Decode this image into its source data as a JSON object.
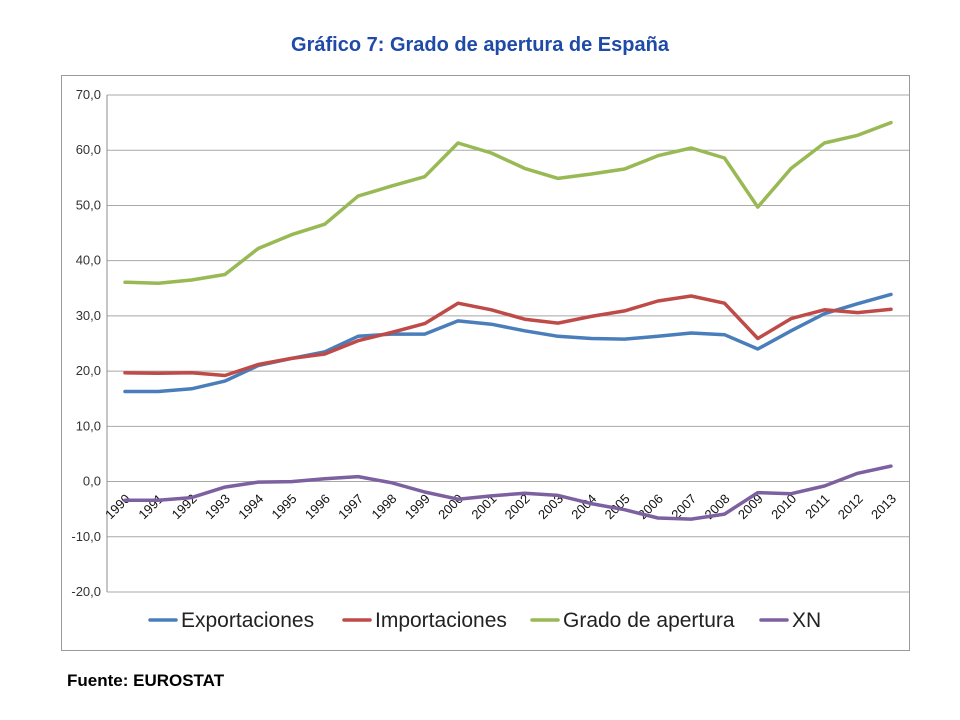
{
  "title": "Gráfico 7: Grado de apertura de España",
  "source": "Fuente: EUROSTAT",
  "chart_data": {
    "type": "line",
    "title": "Gráfico 7: Grado de apertura de España",
    "xlabel": "",
    "ylabel": "",
    "ylim": [
      -20,
      70
    ],
    "y_ticks": [
      "70,0",
      "60,0",
      "50,0",
      "40,0",
      "30,0",
      "20,0",
      "10,0",
      "0,0",
      "-10,0",
      "-20,0"
    ],
    "grid": true,
    "legend_position": "bottom",
    "categories": [
      "1990",
      "1991",
      "1992",
      "1993",
      "1994",
      "1995",
      "1996",
      "1997",
      "1998",
      "1999",
      "2000",
      "2001",
      "2002",
      "2003",
      "2004",
      "2005",
      "2006",
      "2007",
      "2008",
      "2009",
      "2010",
      "2011",
      "2012",
      "2013"
    ],
    "series": [
      {
        "name": "Exportaciones",
        "color": "#4a7ebb",
        "values": [
          16.3,
          16.3,
          16.8,
          18.2,
          21.0,
          22.3,
          23.5,
          26.3,
          26.7,
          26.7,
          29.1,
          28.5,
          27.3,
          26.3,
          25.9,
          25.8,
          26.3,
          26.9,
          26.6,
          24.0,
          27.3,
          30.4,
          32.2,
          33.9
        ]
      },
      {
        "name": "Importaciones",
        "color": "#be4b48",
        "values": [
          19.7,
          19.6,
          19.7,
          19.2,
          21.2,
          22.3,
          23.1,
          25.5,
          27.0,
          28.6,
          32.3,
          31.1,
          29.4,
          28.7,
          29.9,
          30.9,
          32.7,
          33.6,
          32.3,
          25.9,
          29.5,
          31.1,
          30.6,
          31.2
        ]
      },
      {
        "name": "Grado de apertura",
        "color": "#98b954",
        "values": [
          36.1,
          35.9,
          36.5,
          37.5,
          42.2,
          44.7,
          46.6,
          51.7,
          53.5,
          55.2,
          61.3,
          59.5,
          56.7,
          54.9,
          55.7,
          56.6,
          59.0,
          60.4,
          58.6,
          49.7,
          56.7,
          61.3,
          62.7,
          65.0
        ]
      },
      {
        "name": "XN",
        "color": "#7d60a0",
        "values": [
          -3.4,
          -3.4,
          -2.9,
          -1.0,
          -0.1,
          0.0,
          0.5,
          0.9,
          -0.2,
          -1.9,
          -3.2,
          -2.6,
          -2.1,
          -2.5,
          -4.0,
          -5.1,
          -6.6,
          -6.8,
          -5.9,
          -2.0,
          -2.2,
          -0.8,
          1.5,
          2.8
        ]
      }
    ]
  }
}
